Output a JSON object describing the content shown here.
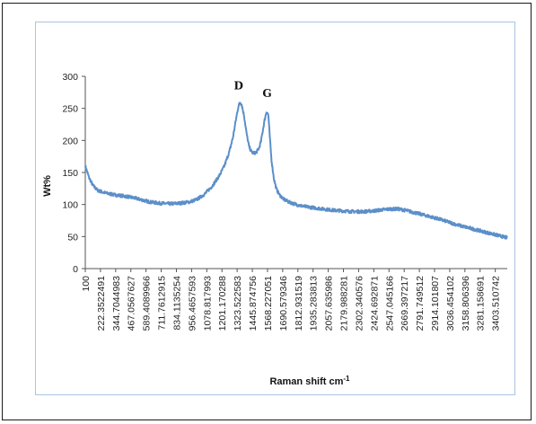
{
  "chart_data": {
    "type": "line",
    "title": "",
    "xlabel": "Raman shift cm",
    "xlabel_sup": "-1",
    "ylabel": "Wt%",
    "ylim": [
      0,
      300
    ],
    "yticks": [
      "0",
      "50",
      "100",
      "150",
      "200",
      "250",
      "300"
    ],
    "xlim": [
      100,
      3500
    ],
    "xticks": [
      "100",
      "222.3522491",
      "344.7044983",
      "467.0567627",
      "589.4089966",
      "711.7612915",
      "834.1135254",
      "956.4657593",
      "1078.817993",
      "1201.170288",
      "1323.522583",
      "1445.874756",
      "1568.227051",
      "1690.579346",
      "1812.931519",
      "1935.283813",
      "2057.635986",
      "2179.988281",
      "2302.340576",
      "2424.692871",
      "2547.045166",
      "2669.397217",
      "2791.749512",
      "2914.101807",
      "3036.454102",
      "3158.806396",
      "3281.158691",
      "3403.510742"
    ],
    "grid": false,
    "line_color": "#5b8fc9",
    "series": [
      {
        "x": [
          100,
          130,
          160,
          200,
          260,
          340,
          420,
          500,
          560,
          620,
          700,
          780,
          860,
          940,
          1000,
          1060,
          1120,
          1180,
          1220,
          1260,
          1290,
          1310,
          1330,
          1345,
          1360,
          1380,
          1400,
          1420,
          1440,
          1460,
          1480,
          1500,
          1515,
          1530,
          1545,
          1560,
          1575,
          1585,
          1600,
          1620,
          1640,
          1665,
          1700,
          1740,
          1800,
          1860,
          1940,
          2020,
          2100,
          2180,
          2260,
          2340,
          2420,
          2500,
          2560,
          2620,
          2680,
          2740,
          2800,
          2860,
          2940,
          3020,
          3100,
          3180,
          3260,
          3340,
          3420,
          3500
        ],
        "y": [
          160,
          142,
          130,
          122,
          118,
          115,
          113,
          110,
          107,
          104,
          102,
          101,
          102,
          104,
          108,
          116,
          128,
          145,
          160,
          182,
          205,
          228,
          250,
          260,
          256,
          238,
          210,
          190,
          182,
          180,
          182,
          188,
          198,
          215,
          232,
          245,
          240,
          210,
          170,
          140,
          124,
          115,
          108,
          104,
          100,
          97,
          95,
          93,
          91,
          90,
          89,
          89,
          90,
          92,
          93,
          93,
          91,
          88,
          85,
          82,
          78,
          73,
          68,
          64,
          60,
          56,
          52,
          48
        ]
      }
    ],
    "annotations": [
      {
        "text": "D",
        "x": 1335,
        "y": 280
      },
      {
        "text": "G",
        "x": 1565,
        "y": 268
      }
    ]
  }
}
